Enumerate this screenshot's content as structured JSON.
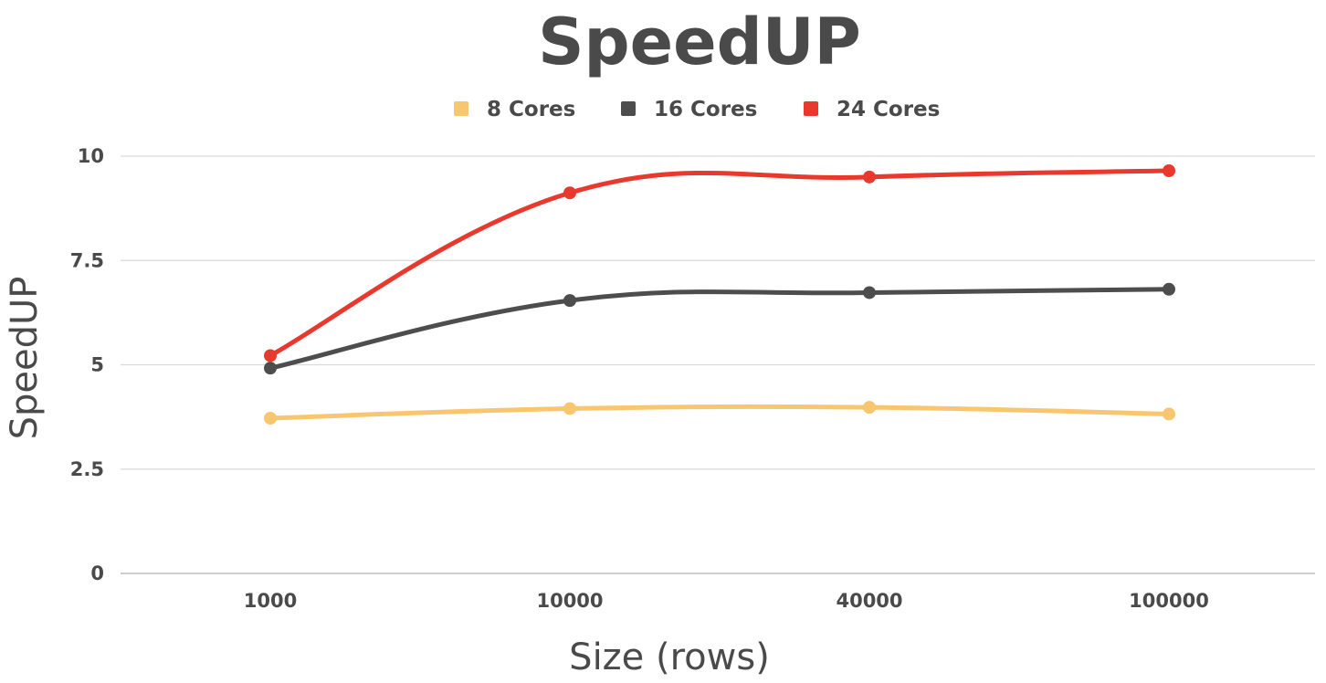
{
  "chart_data": {
    "type": "line",
    "title": "SpeedUP",
    "xlabel": "Size (rows)",
    "ylabel": "SpeedUP",
    "categories": [
      "1000",
      "10000",
      "40000",
      "100000"
    ],
    "yticks": [
      "0",
      "2.5",
      "5",
      "7.5",
      "10"
    ],
    "ylim": [
      0,
      10
    ],
    "grid": true,
    "legend_position": "top",
    "series": [
      {
        "name": "8 Cores",
        "color": "#f7c66f",
        "values": [
          3.72,
          3.95,
          3.98,
          3.82
        ]
      },
      {
        "name": "16 Cores",
        "color": "#4d4d4d",
        "values": [
          4.92,
          6.54,
          6.73,
          6.81
        ]
      },
      {
        "name": "24 Cores",
        "color": "#e8392e",
        "values": [
          5.22,
          9.12,
          9.5,
          9.65
        ]
      }
    ]
  }
}
